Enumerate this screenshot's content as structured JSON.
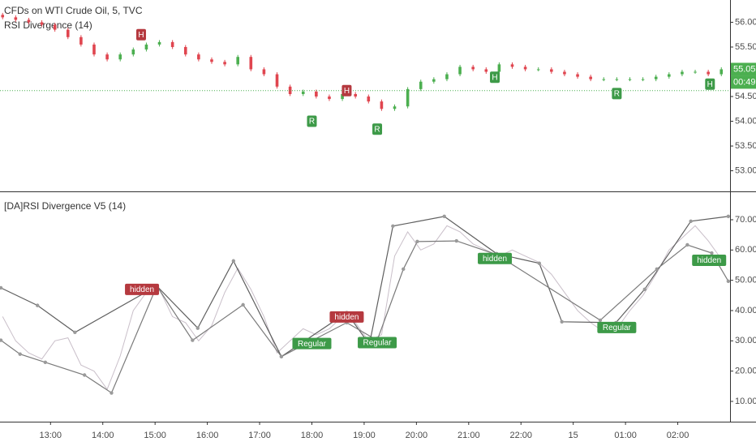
{
  "chart_data": [
    {
      "type": "candlestick",
      "title": "CFDs on WTI Crude Oil, 5, TVC",
      "subtitle": "RSI Divergence (14)",
      "up_color": "#4caf50",
      "down_color": "#e0454f",
      "xlim": [
        2,
        840
      ],
      "ylim": [
        52.6,
        56.45
      ],
      "yticks": [
        {
          "value": 53,
          "label": "53.00"
        },
        {
          "value": 53.5,
          "label": "53.50"
        },
        {
          "value": 54,
          "label": "54.00"
        },
        {
          "value": 54.5,
          "label": "54.50"
        },
        {
          "value": 55.5,
          "label": "55.50"
        },
        {
          "value": 56,
          "label": "56.00"
        }
      ],
      "x": [
        5,
        20,
        35,
        50,
        65,
        80,
        95,
        110,
        125,
        140,
        155,
        170,
        185,
        200,
        215,
        230,
        245,
        260,
        275,
        290,
        305,
        320,
        335,
        350,
        365,
        380,
        395,
        410,
        425,
        440,
        455,
        470,
        485,
        500,
        515,
        530,
        545,
        560,
        575,
        590,
        605,
        620,
        635,
        650,
        665,
        680,
        695,
        710,
        725,
        740,
        755,
        770,
        785,
        800,
        815,
        830
      ],
      "open": [
        56.15,
        56.1,
        56.05,
        56.0,
        55.95,
        55.85,
        55.7,
        55.55,
        55.35,
        55.25,
        55.35,
        55.45,
        55.55,
        55.6,
        55.5,
        55.35,
        55.25,
        55.2,
        55.15,
        55.3,
        55.05,
        54.95,
        54.7,
        54.55,
        54.6,
        54.5,
        54.45,
        54.55,
        54.5,
        54.4,
        54.25,
        54.3,
        54.65,
        54.8,
        54.85,
        54.95,
        55.1,
        55.05,
        55.0,
        55.15,
        55.1,
        55.05,
        55.05,
        55.0,
        54.95,
        54.9,
        54.85,
        54.85,
        54.85,
        54.85,
        54.85,
        54.9,
        54.95,
        55.0,
        55.0,
        54.95
      ],
      "high": [
        56.19,
        56.14,
        56.09,
        56.04,
        55.99,
        55.89,
        55.74,
        55.59,
        55.39,
        55.39,
        55.49,
        55.59,
        55.64,
        55.64,
        55.54,
        55.39,
        55.29,
        55.24,
        55.34,
        55.34,
        55.09,
        54.99,
        54.74,
        54.64,
        54.64,
        54.54,
        54.59,
        54.59,
        54.54,
        54.44,
        54.34,
        54.69,
        54.84,
        54.89,
        54.99,
        55.14,
        55.14,
        55.09,
        55.19,
        55.19,
        55.14,
        55.09,
        55.09,
        55.04,
        54.99,
        54.94,
        54.89,
        54.89,
        54.89,
        54.89,
        54.94,
        54.99,
        55.04,
        55.04,
        55.04,
        55.09
      ],
      "low": [
        56.06,
        56.01,
        55.96,
        55.91,
        55.81,
        55.66,
        55.51,
        55.31,
        55.21,
        55.21,
        55.31,
        55.41,
        55.51,
        55.46,
        55.31,
        55.21,
        55.16,
        55.11,
        55.11,
        55.01,
        54.91,
        54.66,
        54.51,
        54.51,
        54.46,
        54.41,
        54.41,
        54.46,
        54.36,
        54.21,
        54.21,
        54.26,
        54.61,
        54.76,
        54.81,
        54.91,
        55.01,
        54.96,
        54.96,
        55.06,
        55.01,
        55.01,
        54.96,
        54.91,
        54.86,
        54.81,
        54.81,
        54.81,
        54.81,
        54.81,
        54.81,
        54.86,
        54.91,
        54.96,
        54.91,
        54.91
      ],
      "close": [
        56.1,
        56.05,
        56.0,
        55.95,
        55.85,
        55.7,
        55.55,
        55.35,
        55.25,
        55.35,
        55.45,
        55.55,
        55.6,
        55.5,
        55.35,
        55.25,
        55.2,
        55.15,
        55.3,
        55.05,
        54.95,
        54.7,
        54.55,
        54.6,
        54.5,
        54.45,
        54.55,
        54.5,
        54.4,
        54.25,
        54.3,
        54.65,
        54.8,
        54.85,
        54.95,
        55.1,
        55.05,
        55.0,
        55.15,
        55.1,
        55.05,
        55.05,
        55.0,
        54.95,
        54.9,
        54.85,
        54.85,
        54.85,
        54.85,
        54.85,
        54.9,
        54.95,
        55.0,
        55.0,
        54.95,
        55.05
      ],
      "hline": 54.62,
      "hline_color": "#4caf50",
      "last_price": 55.05,
      "countdown": "00:49",
      "annotations": [
        {
          "x": 164,
          "y": 55.75,
          "label": "H",
          "color": "#b5393f"
        },
        {
          "x": 400,
          "y": 54.62,
          "label": "H",
          "color": "#b5393f"
        },
        {
          "x": 360,
          "y": 54.0,
          "label": "R",
          "color": "#3d9a48"
        },
        {
          "x": 435,
          "y": 53.84,
          "label": "R",
          "color": "#3d9a48"
        },
        {
          "x": 570,
          "y": 54.89,
          "label": "H",
          "color": "#3d9a48"
        },
        {
          "x": 710,
          "y": 54.56,
          "label": "R",
          "color": "#3d9a48"
        },
        {
          "x": 817,
          "y": 54.75,
          "label": "H",
          "color": "#3d9a48"
        }
      ]
    },
    {
      "type": "line",
      "title": "[DA]RSI Divergence V5 (14)",
      "xlim": [
        2,
        840
      ],
      "ylim": [
        3.3,
        79.1
      ],
      "yticks": [
        {
          "value": 10,
          "label": "10.00"
        },
        {
          "value": 20,
          "label": "20.00"
        },
        {
          "value": 30,
          "label": "30.00"
        },
        {
          "value": 40,
          "label": "40.00"
        },
        {
          "value": 50,
          "label": "50.00"
        },
        {
          "value": 60,
          "label": "60.00"
        },
        {
          "value": 70,
          "label": "70.00"
        }
      ],
      "xticks": [
        {
          "value": 60,
          "label": "13:00"
        },
        {
          "value": 120,
          "label": "14:00"
        },
        {
          "value": 180,
          "label": "15:00"
        },
        {
          "value": 240,
          "label": "16:00"
        },
        {
          "value": 300,
          "label": "17:00"
        },
        {
          "value": 360,
          "label": "18:00"
        },
        {
          "value": 420,
          "label": "19:00"
        },
        {
          "value": 480,
          "label": "20:00"
        },
        {
          "value": 540,
          "label": "21:00"
        },
        {
          "value": 600,
          "label": "22:00"
        },
        {
          "value": 660,
          "label": "15"
        },
        {
          "value": 720,
          "label": "01:00"
        },
        {
          "value": 780,
          "label": "02:00"
        }
      ],
      "series": [
        {
          "color": "#c9bfc9",
          "pivots": false,
          "x": [
            5,
            20,
            35,
            50,
            65,
            80,
            95,
            110,
            125,
            140,
            155,
            170,
            185,
            200,
            215,
            230,
            245,
            260,
            275,
            290,
            305,
            320,
            335,
            350,
            365,
            380,
            395,
            410,
            425,
            440,
            455,
            470,
            485,
            500,
            515,
            530,
            545,
            560,
            575,
            590,
            605,
            620,
            635,
            650,
            665,
            680,
            695,
            710,
            725,
            740,
            755,
            770,
            785,
            800,
            815,
            830
          ],
          "values": [
            38,
            30,
            26,
            24,
            30,
            31,
            22,
            20,
            14,
            25,
            40,
            46,
            47,
            38,
            36,
            30,
            35,
            46,
            54,
            47,
            38,
            26,
            30,
            34,
            32,
            34,
            38,
            36,
            30,
            32,
            58,
            66,
            60,
            62,
            68,
            66,
            62,
            60,
            58,
            60,
            58,
            56,
            52,
            46,
            40,
            36,
            33,
            34,
            40,
            45,
            52,
            60,
            64,
            68,
            63,
            57
          ]
        },
        {
          "color": "#5f5f5f",
          "pivots": true,
          "x": [
            3,
            45,
            88,
            182,
            229,
            270,
            325,
            400,
            426,
            453,
            512,
            572,
            621,
            647,
            709,
            742,
            795,
            838
          ],
          "values": [
            47.5,
            41.7,
            32.8,
            48.1,
            34.2,
            56.4,
            24.8,
            39.3,
            28.8,
            67.9,
            71.1,
            58.8,
            55.6,
            36.3,
            36.0,
            47.0,
            69.5,
            71.1
          ]
        },
        {
          "color": "#7a7a7a",
          "pivots": true,
          "x": [
            3,
            25,
            54,
            99,
            130,
            182,
            223,
            281,
            325,
            400,
            435,
            465,
            481,
            526,
            572,
            691,
            756,
            791,
            819,
            838
          ],
          "values": [
            30.2,
            25.6,
            22.9,
            18.7,
            12.8,
            48.1,
            30.2,
            41.9,
            24.8,
            36.0,
            30.2,
            53.7,
            62.8,
            63.0,
            58.5,
            36.8,
            53.7,
            61.7,
            59.0,
            49.7
          ]
        }
      ],
      "annotations": [
        {
          "x": 165,
          "y": 47,
          "label": "hidden",
          "color": "#b5393f"
        },
        {
          "x": 360,
          "y": 29.1,
          "label": "Regular",
          "color": "#3d9a48"
        },
        {
          "x": 400,
          "y": 37.9,
          "label": "hidden",
          "color": "#b5393f"
        },
        {
          "x": 435,
          "y": 29.4,
          "label": "Regular",
          "color": "#3d9a48"
        },
        {
          "x": 570,
          "y": 57.2,
          "label": "hidden",
          "color": "#3d9a48"
        },
        {
          "x": 710,
          "y": 34.4,
          "label": "Regular",
          "color": "#3d9a48"
        },
        {
          "x": 816,
          "y": 56.6,
          "label": "hidden",
          "color": "#3d9a48"
        }
      ]
    }
  ]
}
